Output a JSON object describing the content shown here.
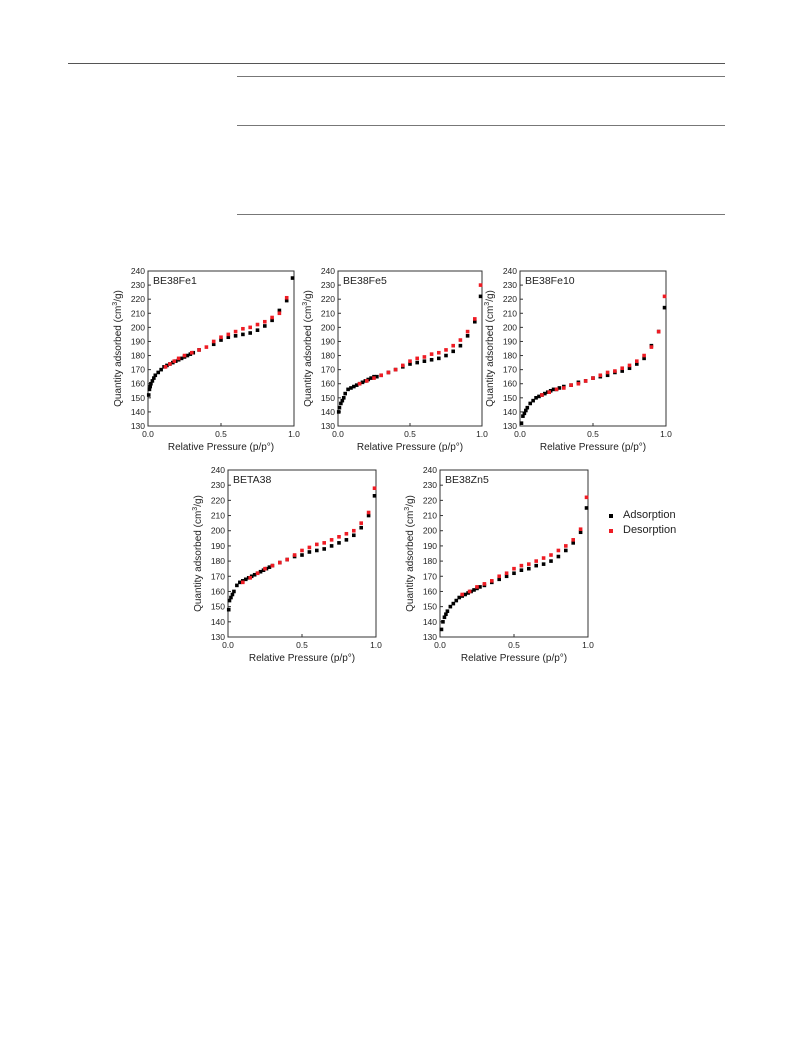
{
  "legend": {
    "adsorption": "Adsorption",
    "desorption": "Desorption",
    "adsorption_color": "#000000",
    "desorption_color": "#ee1c24"
  },
  "chart_data": [
    {
      "type": "scatter",
      "title": "BE38Fe1",
      "xlabel": "Relative Pressure (p/p°)",
      "ylabel_main": "Quantity adsorbed (cm",
      "ylabel_sup": "3",
      "ylabel_end": "/g)",
      "xlim": [
        0,
        1.0
      ],
      "ylim": [
        130,
        240
      ],
      "xticks": [
        "0.0",
        "0.5",
        "1.0"
      ],
      "yticks": [
        "130",
        "140",
        "150",
        "160",
        "170",
        "180",
        "190",
        "200",
        "210",
        "220",
        "230",
        "240"
      ],
      "grid": false,
      "series": [
        {
          "name": "Adsorption",
          "color": "#000000",
          "x": [
            0.005,
            0.01,
            0.015,
            0.02,
            0.03,
            0.04,
            0.05,
            0.07,
            0.09,
            0.11,
            0.13,
            0.15,
            0.17,
            0.19,
            0.21,
            0.23,
            0.25,
            0.27,
            0.29,
            0.31,
            0.35,
            0.45,
            0.5,
            0.55,
            0.6,
            0.65,
            0.7,
            0.75,
            0.8,
            0.85,
            0.9,
            0.95,
            0.99
          ],
          "y": [
            152,
            156,
            158,
            160,
            162,
            164,
            166,
            168,
            170,
            172,
            173,
            174,
            175,
            176,
            177,
            178,
            179,
            180,
            181,
            182,
            184,
            188,
            191,
            193,
            194,
            195,
            196,
            198,
            201,
            205,
            212,
            219,
            235
          ]
        },
        {
          "name": "Desorption",
          "color": "#ee1c24",
          "x": [
            0.12,
            0.15,
            0.18,
            0.21,
            0.25,
            0.3,
            0.35,
            0.4,
            0.45,
            0.5,
            0.55,
            0.6,
            0.65,
            0.7,
            0.75,
            0.8,
            0.85,
            0.9,
            0.95
          ],
          "y": [
            172,
            174,
            176,
            178,
            180,
            182,
            184,
            186,
            190,
            193,
            195,
            197,
            199,
            200,
            202,
            204,
            207,
            210,
            221
          ]
        }
      ]
    },
    {
      "type": "scatter",
      "title": "BE38Fe5",
      "xlabel": "Relative Pressure (p/p°)",
      "ylabel_main": "Quantity adsorbed (cm",
      "ylabel_sup": "3",
      "ylabel_end": "/g)",
      "xlim": [
        0,
        1.0
      ],
      "ylim": [
        130,
        240
      ],
      "xticks": [
        "0.0",
        "0.5",
        "1.0"
      ],
      "yticks": [
        "130",
        "140",
        "150",
        "160",
        "170",
        "180",
        "190",
        "200",
        "210",
        "220",
        "230",
        "240"
      ],
      "grid": false,
      "series": [
        {
          "name": "Adsorption",
          "color": "#000000",
          "x": [
            0.005,
            0.01,
            0.02,
            0.03,
            0.04,
            0.05,
            0.07,
            0.09,
            0.11,
            0.13,
            0.15,
            0.17,
            0.19,
            0.21,
            0.23,
            0.25,
            0.27,
            0.3,
            0.35,
            0.4,
            0.45,
            0.5,
            0.55,
            0.6,
            0.65,
            0.7,
            0.75,
            0.8,
            0.85,
            0.9,
            0.95,
            0.99
          ],
          "y": [
            140,
            143,
            146,
            148,
            150,
            153,
            156,
            157,
            158,
            159,
            160,
            161,
            162,
            163,
            164,
            165,
            165,
            166,
            168,
            170,
            172,
            174,
            175,
            176,
            177,
            178,
            180,
            183,
            187,
            194,
            204,
            222
          ]
        },
        {
          "name": "Desorption",
          "color": "#ee1c24",
          "x": [
            0.15,
            0.2,
            0.25,
            0.3,
            0.35,
            0.4,
            0.45,
            0.5,
            0.55,
            0.6,
            0.65,
            0.7,
            0.75,
            0.8,
            0.85,
            0.9,
            0.95,
            0.99
          ],
          "y": [
            160,
            162,
            164,
            166,
            168,
            170,
            173,
            176,
            178,
            179,
            181,
            182,
            184,
            187,
            191,
            197,
            206,
            230
          ]
        }
      ]
    },
    {
      "type": "scatter",
      "title": "BE38Fe10",
      "xlabel": "Relative Pressure (p/p°)",
      "ylabel_main": "Quantity adsorbed (cm",
      "ylabel_sup": "3",
      "ylabel_end": "/g)",
      "xlim": [
        0,
        1.0
      ],
      "ylim": [
        130,
        240
      ],
      "xticks": [
        "0.0",
        "0.5",
        "1.0"
      ],
      "yticks": [
        "130",
        "140",
        "150",
        "160",
        "170",
        "180",
        "190",
        "200",
        "210",
        "220",
        "230",
        "240"
      ],
      "grid": false,
      "series": [
        {
          "name": "Adsorption",
          "color": "#000000",
          "x": [
            0.01,
            0.02,
            0.03,
            0.04,
            0.05,
            0.07,
            0.09,
            0.11,
            0.13,
            0.15,
            0.17,
            0.19,
            0.21,
            0.23,
            0.25,
            0.27,
            0.3,
            0.35,
            0.4,
            0.45,
            0.5,
            0.55,
            0.6,
            0.65,
            0.7,
            0.75,
            0.8,
            0.85,
            0.9,
            0.95,
            0.99
          ],
          "y": [
            132,
            137,
            139,
            141,
            143,
            146,
            148,
            150,
            151,
            152,
            153,
            154,
            155,
            156,
            156,
            157,
            158,
            159,
            161,
            162,
            164,
            165,
            166,
            168,
            169,
            171,
            174,
            178,
            187,
            197,
            214
          ]
        },
        {
          "name": "Desorption",
          "color": "#ee1c24",
          "x": [
            0.15,
            0.2,
            0.25,
            0.3,
            0.35,
            0.4,
            0.45,
            0.5,
            0.55,
            0.6,
            0.65,
            0.7,
            0.75,
            0.8,
            0.85,
            0.9,
            0.95,
            0.99
          ],
          "y": [
            152,
            154,
            156,
            157,
            159,
            160,
            162,
            164,
            166,
            168,
            169,
            171,
            173,
            176,
            180,
            186,
            197,
            222
          ]
        }
      ]
    },
    {
      "type": "scatter",
      "title": "BETA38",
      "xlabel": "Relative Pressure (p/p°)",
      "ylabel_main": "Quantity adsorbed (cm",
      "ylabel_sup": "3",
      "ylabel_end": "/g)",
      "xlim": [
        0,
        1.0
      ],
      "ylim": [
        130,
        240
      ],
      "xticks": [
        "0.0",
        "0.5",
        "1.0"
      ],
      "yticks": [
        "130",
        "140",
        "150",
        "160",
        "170",
        "180",
        "190",
        "200",
        "210",
        "220",
        "230",
        "240"
      ],
      "grid": false,
      "series": [
        {
          "name": "Adsorption",
          "color": "#000000",
          "x": [
            0.005,
            0.01,
            0.02,
            0.03,
            0.04,
            0.06,
            0.08,
            0.1,
            0.12,
            0.14,
            0.16,
            0.18,
            0.2,
            0.22,
            0.24,
            0.26,
            0.28,
            0.3,
            0.35,
            0.4,
            0.45,
            0.5,
            0.55,
            0.6,
            0.65,
            0.7,
            0.75,
            0.8,
            0.85,
            0.9,
            0.95,
            0.99
          ],
          "y": [
            148,
            154,
            156,
            158,
            160,
            164,
            166,
            167,
            168,
            169,
            170,
            171,
            172,
            173,
            174,
            175,
            176,
            177,
            179,
            181,
            183,
            184,
            186,
            187,
            188,
            190,
            192,
            194,
            197,
            202,
            210,
            223
          ]
        },
        {
          "name": "Desorption",
          "color": "#ee1c24",
          "x": [
            0.1,
            0.15,
            0.2,
            0.25,
            0.3,
            0.35,
            0.4,
            0.45,
            0.5,
            0.55,
            0.6,
            0.65,
            0.7,
            0.75,
            0.8,
            0.85,
            0.9,
            0.95,
            0.99
          ],
          "y": [
            166,
            169,
            172,
            175,
            177,
            179,
            181,
            184,
            187,
            189,
            191,
            192,
            194,
            196,
            198,
            200,
            205,
            212,
            228
          ]
        }
      ]
    },
    {
      "type": "scatter",
      "title": "BE38Zn5",
      "xlabel": "Relative Pressure (p/p°)",
      "ylabel_main": "Quantity adsorbed (cm",
      "ylabel_sup": "3",
      "ylabel_end": "/g)",
      "xlim": [
        0,
        1.0
      ],
      "ylim": [
        130,
        240
      ],
      "xticks": [
        "0.0",
        "0.5",
        "1.0"
      ],
      "yticks": [
        "130",
        "140",
        "150",
        "160",
        "170",
        "180",
        "190",
        "200",
        "210",
        "220",
        "230",
        "240"
      ],
      "grid": false,
      "series": [
        {
          "name": "Adsorption",
          "color": "#000000",
          "x": [
            0.01,
            0.02,
            0.03,
            0.04,
            0.05,
            0.07,
            0.09,
            0.11,
            0.13,
            0.15,
            0.17,
            0.19,
            0.21,
            0.23,
            0.25,
            0.27,
            0.3,
            0.35,
            0.4,
            0.45,
            0.5,
            0.55,
            0.6,
            0.65,
            0.7,
            0.75,
            0.8,
            0.85,
            0.9,
            0.95,
            0.99
          ],
          "y": [
            135,
            140,
            143,
            145,
            147,
            150,
            152,
            154,
            156,
            157,
            158,
            159,
            160,
            161,
            162,
            163,
            164,
            166,
            168,
            170,
            172,
            174,
            175,
            177,
            178,
            180,
            183,
            187,
            192,
            199,
            215
          ]
        },
        {
          "name": "Desorption",
          "color": "#ee1c24",
          "x": [
            0.15,
            0.2,
            0.25,
            0.3,
            0.35,
            0.4,
            0.45,
            0.5,
            0.55,
            0.6,
            0.65,
            0.7,
            0.75,
            0.8,
            0.85,
            0.9,
            0.95,
            0.99
          ],
          "y": [
            158,
            160,
            163,
            165,
            167,
            170,
            172,
            175,
            177,
            178,
            180,
            182,
            184,
            187,
            190,
            194,
            201,
            222
          ]
        }
      ]
    }
  ]
}
